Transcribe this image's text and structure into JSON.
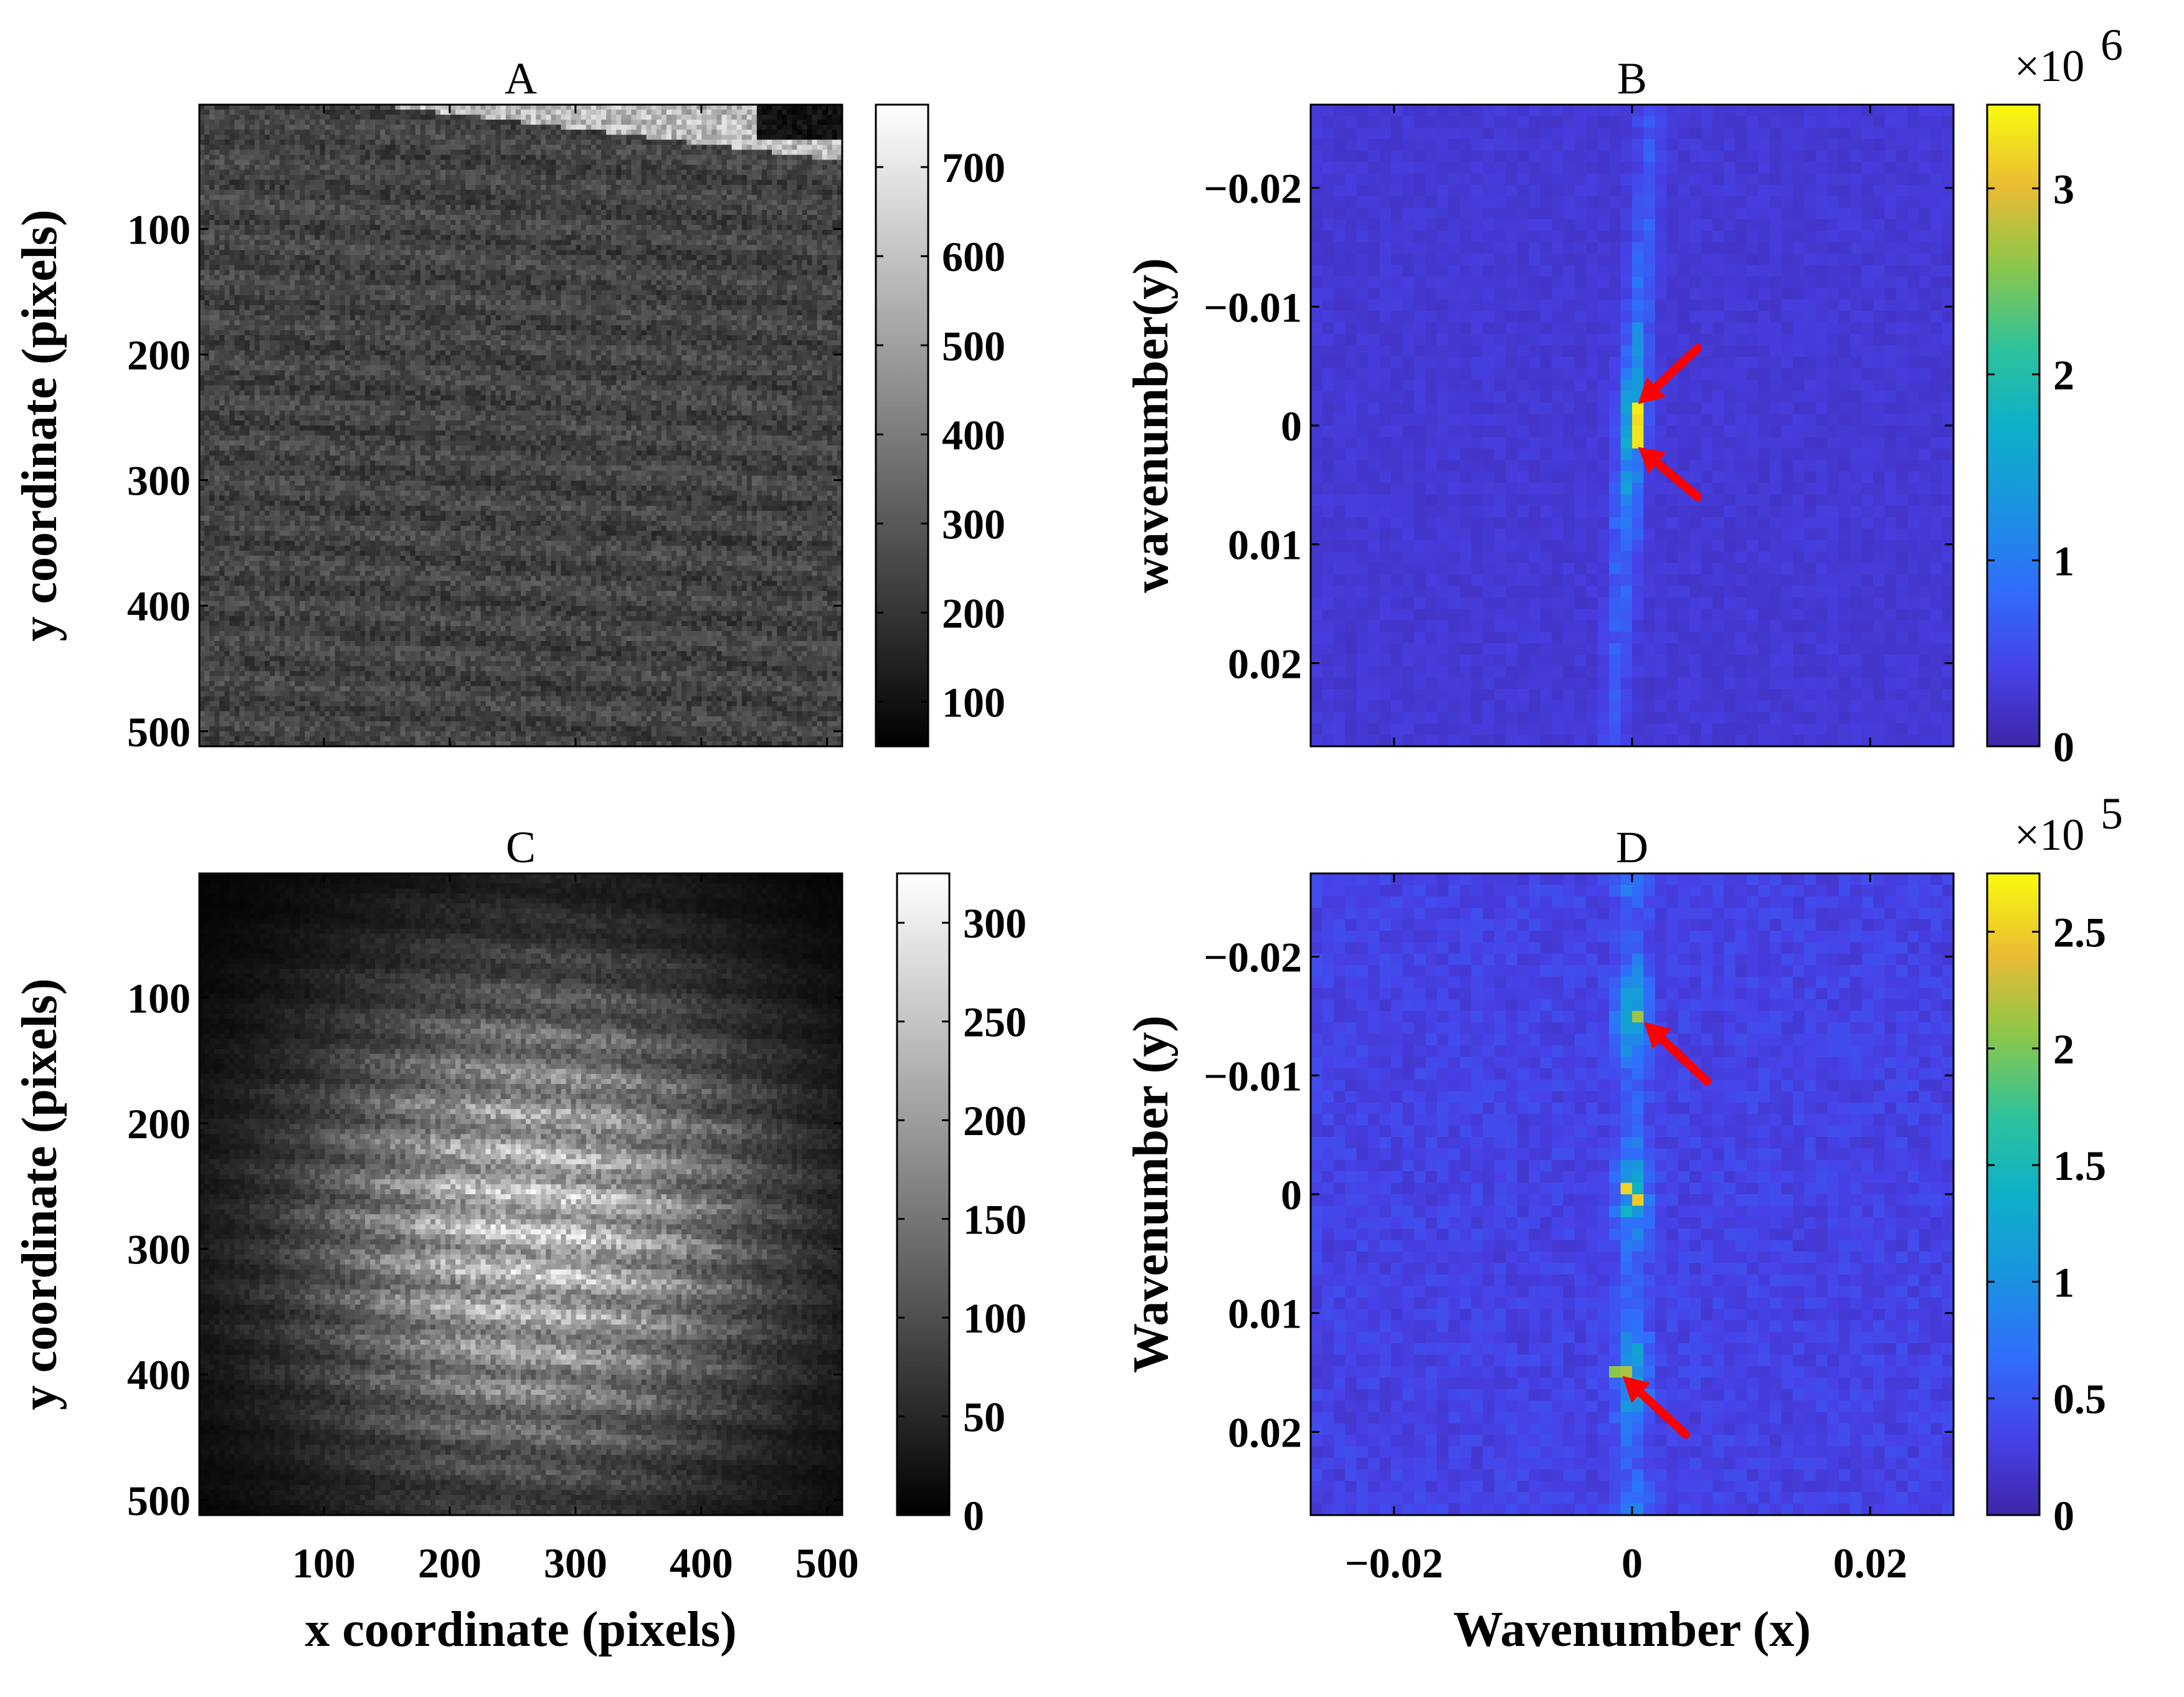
{
  "chart_data": [
    {
      "panel": "A",
      "type": "heatmap",
      "title": "A",
      "xlabel": "",
      "ylabel": "y coordinate (pixels)",
      "colormap": "gray",
      "x_ticks": [],
      "y_ticks": [
        {
          "value": 100,
          "label": "100"
        },
        {
          "value": 200,
          "label": "200"
        },
        {
          "value": 300,
          "label": "300"
        },
        {
          "value": 400,
          "label": "400"
        },
        {
          "value": 500,
          "label": "500"
        }
      ],
      "xlim": [
        1,
        512
      ],
      "ylim": [
        1,
        512
      ],
      "y_reversed": true,
      "colorbar": {
        "clim": [
          50,
          770
        ],
        "ticks": [
          {
            "value": 100,
            "label": "100"
          },
          {
            "value": 200,
            "label": "200"
          },
          {
            "value": 300,
            "label": "300"
          },
          {
            "value": 400,
            "label": "400"
          },
          {
            "value": 500,
            "label": "500"
          },
          {
            "value": 600,
            "label": "600"
          },
          {
            "value": 700,
            "label": "700"
          }
        ],
        "exponent": ""
      },
      "description_values": {
        "background_level": 280,
        "shore_bright_level": 700
      }
    },
    {
      "panel": "B",
      "type": "heatmap",
      "title": "B",
      "xlabel": "",
      "ylabel": "wavenumber(y)",
      "colormap": "parula",
      "x_ticks": [],
      "y_ticks": [
        {
          "value": -0.02,
          "label": "−0.02"
        },
        {
          "value": -0.01,
          "label": "−0.01"
        },
        {
          "value": 0,
          "label": "0"
        },
        {
          "value": 0.01,
          "label": "0.01"
        },
        {
          "value": 0.02,
          "label": "0.02"
        }
      ],
      "xlim": [
        -0.027,
        0.027
      ],
      "ylim": [
        -0.027,
        0.027
      ],
      "y_reversed": true,
      "colorbar": {
        "clim": [
          0,
          3.45
        ],
        "ticks": [
          {
            "value": 0,
            "label": "0"
          },
          {
            "value": 1,
            "label": "1"
          },
          {
            "value": 2,
            "label": "2"
          },
          {
            "value": 3,
            "label": "3"
          }
        ],
        "exponent": "×10",
        "exponent_power": "6"
      },
      "peaks": [
        {
          "x": 0.0004,
          "y": -0.001,
          "value": 3.4
        },
        {
          "x": 0.0004,
          "y": 0.001,
          "value": 3.4
        }
      ],
      "arrows": [
        {
          "from": [
            0.0055,
            -0.0065
          ],
          "to": [
            0.0005,
            -0.0018
          ]
        },
        {
          "from": [
            0.0055,
            0.006
          ],
          "to": [
            0.0005,
            0.0018
          ]
        }
      ]
    },
    {
      "panel": "C",
      "type": "heatmap",
      "title": "C",
      "xlabel": "x coordinate (pixels)",
      "ylabel": "y coordinate (pixels)",
      "colormap": "gray",
      "x_ticks": [
        {
          "value": 100,
          "label": "100"
        },
        {
          "value": 200,
          "label": "200"
        },
        {
          "value": 300,
          "label": "300"
        },
        {
          "value": 400,
          "label": "400"
        },
        {
          "value": 500,
          "label": "500"
        }
      ],
      "y_ticks": [
        {
          "value": 100,
          "label": "100"
        },
        {
          "value": 200,
          "label": "200"
        },
        {
          "value": 300,
          "label": "300"
        },
        {
          "value": 400,
          "label": "400"
        },
        {
          "value": 500,
          "label": "500"
        }
      ],
      "xlim": [
        1,
        512
      ],
      "ylim": [
        1,
        512
      ],
      "y_reversed": true,
      "colorbar": {
        "clim": [
          0,
          325
        ],
        "ticks": [
          {
            "value": 0,
            "label": "0"
          },
          {
            "value": 50,
            "label": "50"
          },
          {
            "value": 100,
            "label": "100"
          },
          {
            "value": 150,
            "label": "150"
          },
          {
            "value": 200,
            "label": "200"
          },
          {
            "value": 250,
            "label": "250"
          },
          {
            "value": 300,
            "label": "300"
          }
        ],
        "exponent": ""
      },
      "description_values": {
        "center_peak_level": 230,
        "center_x": 300,
        "center_y": 260
      }
    },
    {
      "panel": "D",
      "type": "heatmap",
      "title": "D",
      "xlabel": "Wavenumber (x)",
      "ylabel": "Wavenumber (y)",
      "colormap": "parula",
      "x_ticks": [
        {
          "value": -0.02,
          "label": "−0.02"
        },
        {
          "value": 0,
          "label": "0"
        },
        {
          "value": 0.02,
          "label": "0.02"
        }
      ],
      "y_ticks": [
        {
          "value": -0.02,
          "label": "−0.02"
        },
        {
          "value": -0.01,
          "label": "−0.01"
        },
        {
          "value": 0,
          "label": "0"
        },
        {
          "value": 0.01,
          "label": "0.01"
        },
        {
          "value": 0.02,
          "label": "0.02"
        }
      ],
      "xlim": [
        -0.027,
        0.027
      ],
      "ylim": [
        -0.027,
        0.027
      ],
      "y_reversed": true,
      "colorbar": {
        "clim": [
          0,
          2.75
        ],
        "ticks": [
          {
            "value": 0,
            "label": "0"
          },
          {
            "value": 0.5,
            "label": "0.5"
          },
          {
            "value": 1,
            "label": "1"
          },
          {
            "value": 1.5,
            "label": "1.5"
          },
          {
            "value": 2,
            "label": "2"
          },
          {
            "value": 2.5,
            "label": "2.5"
          }
        ],
        "exponent": "×10",
        "exponent_power": "5"
      },
      "peaks": [
        {
          "x": 0.0004,
          "y": -0.015,
          "value": 2.3
        },
        {
          "x": -0.0004,
          "y": -0.0006,
          "value": 2.6
        },
        {
          "x": 0.0004,
          "y": 0.0006,
          "value": 2.6
        },
        {
          "x": -0.0012,
          "y": 0.015,
          "value": 2.2
        }
      ],
      "arrows": [
        {
          "from": [
            0.0063,
            -0.0095
          ],
          "to": [
            0.001,
            -0.0145
          ]
        },
        {
          "from": [
            0.0045,
            0.0202
          ],
          "to": [
            -0.0008,
            0.0153
          ]
        }
      ]
    }
  ]
}
